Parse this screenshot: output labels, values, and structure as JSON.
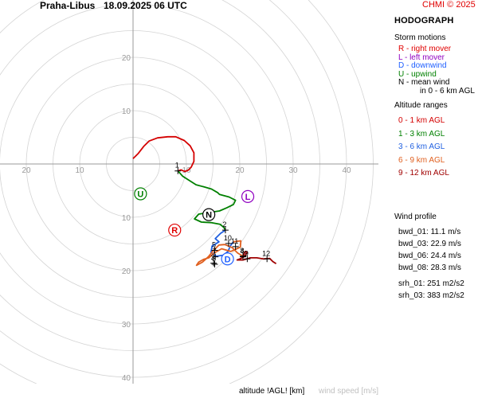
{
  "header": {
    "station": "Praha-Libus",
    "datetime": "18.09.2025 06 UTC",
    "credit": "CHMI © 2025"
  },
  "panel": {
    "title": "HODOGRAPH",
    "storm_title": "Storm motions",
    "storm_items": [
      {
        "text": "R - right mover",
        "color": "#e00000"
      },
      {
        "text": "L - left mover",
        "color": "#9000c0"
      },
      {
        "text": "D - downwind",
        "color": "#2060ff"
      },
      {
        "text": "U - upwind",
        "color": "#008000"
      },
      {
        "text": "N - mean wind",
        "color": "#000000"
      },
      {
        "text": "in 0 - 6 km AGL",
        "color": "#000000"
      }
    ],
    "alt_title": "Altitude ranges",
    "alt_items": [
      {
        "text": "0 - 1 km AGL",
        "color": "#d40000"
      },
      {
        "text": "1 - 3 km AGL",
        "color": "#008000"
      },
      {
        "text": "3 - 6 km AGL",
        "color": "#2060e0"
      },
      {
        "text": "6 - 9 km AGL",
        "color": "#e06020"
      },
      {
        "text": "9 - 12 km AGL",
        "color": "#a00000"
      }
    ],
    "wind_title": "Wind profile",
    "wind_items": [
      {
        "text": "bwd_01: 11.1 m/s"
      },
      {
        "text": "bwd_03: 22.9 m/s"
      },
      {
        "text": "bwd_06: 24.4 m/s"
      },
      {
        "text": "bwd_08: 28.3 m/s"
      },
      {
        "text": "srh_01: 251 m2/s2"
      },
      {
        "text": "srh_03: 383 m2/s2"
      }
    ]
  },
  "footer": {
    "altitude_label": "altitude !AGL! [km]",
    "speed_label": "wind speed [m/s]"
  },
  "chart_data": {
    "type": "line",
    "rings": [
      5,
      10,
      15,
      20,
      25,
      30,
      35,
      40,
      45
    ],
    "x_ticks": [
      {
        "value": -20,
        "label": "20"
      },
      {
        "value": -10,
        "label": "10"
      },
      {
        "value": 10,
        "label": "10"
      },
      {
        "value": 20,
        "label": "20"
      },
      {
        "value": 30,
        "label": "30"
      },
      {
        "value": 40,
        "label": "40"
      }
    ],
    "y_ticks": [
      {
        "value": 20,
        "label": "20"
      },
      {
        "value": 10,
        "label": "10"
      },
      {
        "value": -10,
        "label": "10"
      },
      {
        "value": -20,
        "label": "20"
      },
      {
        "value": -30,
        "label": "30"
      },
      {
        "value": -40,
        "label": "40"
      }
    ],
    "series": [
      {
        "range": "0-1",
        "color": "#d40000",
        "points": [
          [
            0,
            1
          ],
          [
            1,
            2
          ],
          [
            2,
            3.3
          ],
          [
            3,
            4.3
          ],
          [
            4.6,
            4.9
          ],
          [
            6.5,
            5.1
          ],
          [
            8,
            5.1
          ],
          [
            9.6,
            4.4
          ],
          [
            10.7,
            3.4
          ],
          [
            11.4,
            2.1
          ],
          [
            11.4,
            0.5
          ],
          [
            10.9,
            -0.6
          ],
          [
            10.3,
            -1.2
          ],
          [
            9.7,
            -1.4
          ],
          [
            9,
            -1.1
          ],
          [
            8.4,
            -1.3
          ]
        ]
      },
      {
        "range": "1-3",
        "color": "#008000",
        "points": [
          [
            8.4,
            -1.3
          ],
          [
            9.3,
            -2.3
          ],
          [
            10.4,
            -3
          ],
          [
            11.8,
            -3.9
          ],
          [
            13.3,
            -4.3
          ],
          [
            14.7,
            -4.7
          ],
          [
            15.9,
            -5.4
          ],
          [
            16.2,
            -5.7
          ],
          [
            18,
            -6.2
          ],
          [
            19.2,
            -6.8
          ],
          [
            18.8,
            -7.6
          ],
          [
            17.6,
            -8.2
          ],
          [
            16.2,
            -8.8
          ],
          [
            14.2,
            -9.1
          ],
          [
            12.3,
            -9.4
          ],
          [
            11.5,
            -10.3
          ],
          [
            12.8,
            -10.9
          ],
          [
            14.7,
            -11
          ],
          [
            16.3,
            -11.3
          ],
          [
            17,
            -11.9
          ],
          [
            17.3,
            -12.4
          ]
        ]
      },
      {
        "range": "3-6",
        "color": "#2060e0",
        "points": [
          [
            17.3,
            -12.4
          ],
          [
            16.4,
            -13
          ],
          [
            15.4,
            -14
          ],
          [
            16.1,
            -14.6
          ],
          [
            14.8,
            -15.4
          ],
          [
            14.6,
            -16.6
          ],
          [
            15.6,
            -17.3
          ],
          [
            16.9,
            -17.1
          ],
          [
            17.8,
            -16.4
          ],
          [
            18.2,
            -15.4
          ],
          [
            18.8,
            -14.6
          ]
        ]
      },
      {
        "range": "6-9",
        "color": "#e06020",
        "points": [
          [
            18.8,
            -14.6
          ],
          [
            20.2,
            -14.4
          ],
          [
            20.1,
            -15.6
          ],
          [
            18.3,
            -16.4
          ],
          [
            16.6,
            -15.9
          ],
          [
            15.2,
            -16.7
          ],
          [
            14.2,
            -17.6
          ],
          [
            13.2,
            -17.9
          ],
          [
            12.3,
            -18.4
          ],
          [
            11.9,
            -19
          ],
          [
            13,
            -18.4
          ],
          [
            14.1,
            -17.4
          ],
          [
            15,
            -16.3
          ],
          [
            16.1,
            -15.2
          ],
          [
            17.2,
            -15.1
          ],
          [
            18.6,
            -15.7
          ],
          [
            19.6,
            -16.7
          ],
          [
            20.6,
            -17.3
          ]
        ]
      },
      {
        "range": "9-12",
        "color": "#a00000",
        "points": [
          [
            20.6,
            -17.3
          ],
          [
            21,
            -16.4
          ],
          [
            21.4,
            -16.6
          ],
          [
            20.8,
            -17.4
          ],
          [
            20,
            -17.8
          ],
          [
            19.5,
            -18
          ],
          [
            20.6,
            -18
          ],
          [
            22,
            -17.6
          ],
          [
            23.2,
            -17.6
          ],
          [
            24.4,
            -17.8
          ],
          [
            25.6,
            -17.7
          ],
          [
            26.2,
            -18.3
          ],
          [
            26.8,
            -18.7
          ]
        ]
      }
    ],
    "altitude_markers": [
      {
        "label": "1",
        "x": 8.4,
        "y": -1.3
      },
      {
        "label": "2",
        "x": 17.3,
        "y": -12.4
      },
      {
        "label": "3",
        "x": 15.1,
        "y": -18.6
      },
      {
        "label": "4",
        "x": 20.6,
        "y": -17.4
      },
      {
        "label": "5",
        "x": 15.3,
        "y": -16.2
      },
      {
        "label": "6",
        "x": 15.3,
        "y": -18.8
      },
      {
        "label": "7",
        "x": 15.4,
        "y": -17.4
      },
      {
        "label": "8",
        "x": 20.6,
        "y": -17.3
      },
      {
        "label": "9",
        "x": 21.4,
        "y": -17.8
      },
      {
        "label": "10",
        "x": 17.9,
        "y": -14.9
      },
      {
        "label": "11",
        "x": 19.2,
        "y": -15.5
      },
      {
        "label": "12",
        "x": 25.1,
        "y": -17.8
      }
    ],
    "storm_motions": [
      {
        "label": "U",
        "x": 1.4,
        "y": -5.6,
        "color": "#008000"
      },
      {
        "label": "L",
        "x": 21.5,
        "y": -6.1,
        "color": "#9000c0"
      },
      {
        "label": "N",
        "x": 14.2,
        "y": -9.5,
        "color": "#000000"
      },
      {
        "label": "R",
        "x": 7.8,
        "y": -12.4,
        "color": "#e00000"
      },
      {
        "label": "D",
        "x": 17.7,
        "y": -17.8,
        "color": "#2060ff"
      }
    ]
  }
}
